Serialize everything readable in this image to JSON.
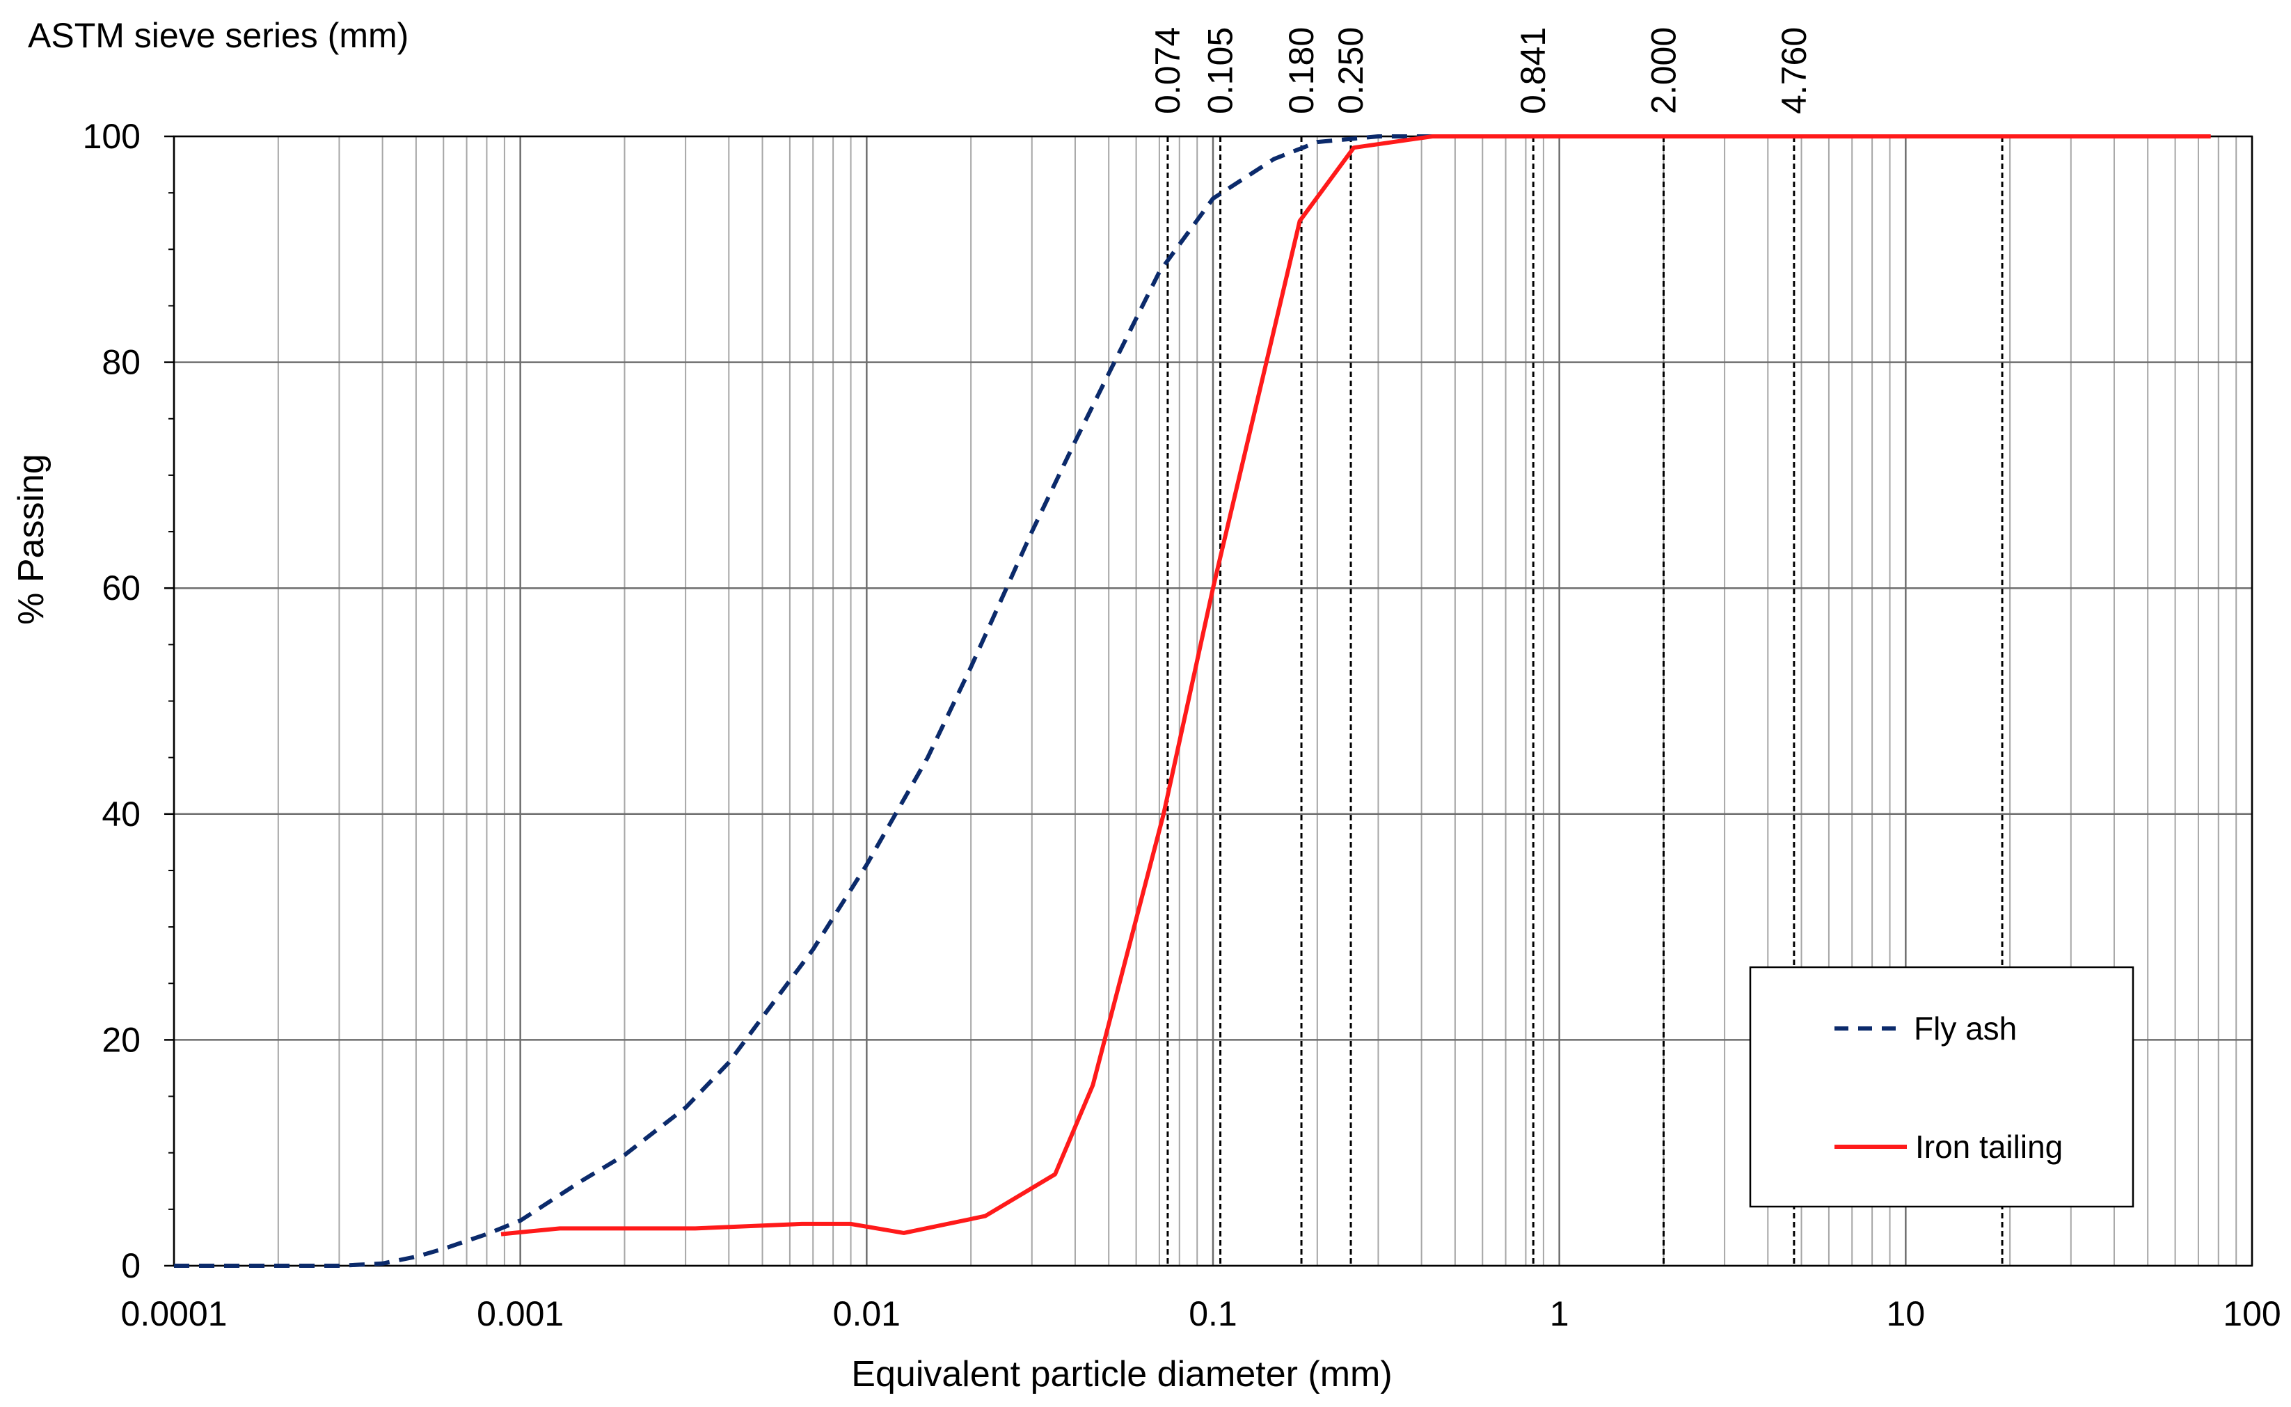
{
  "chart_data": {
    "type": "line",
    "title": "",
    "xlabel": "Equivalent particle diameter (mm)",
    "ylabel": "% Passing",
    "x_scale": "log",
    "xlim": [
      0.0001,
      100
    ],
    "ylim": [
      0,
      100
    ],
    "x_ticks": [
      "0.0001",
      "0.001",
      "0.01",
      "0.1",
      "1",
      "10",
      "100"
    ],
    "y_ticks": [
      "0",
      "20",
      "40",
      "60",
      "80",
      "100"
    ],
    "grid": true,
    "legend_position": "bottom-right",
    "sieve_axis": {
      "label": "ASTM sieve series (mm)",
      "sieves": [
        {
          "label": "0.074",
          "value": 0.074
        },
        {
          "label": "0.105",
          "value": 0.105
        },
        {
          "label": "0.180",
          "value": 0.18
        },
        {
          "label": "0.250",
          "value": 0.25
        },
        {
          "label": "0.841",
          "value": 0.841
        },
        {
          "label": "2.000",
          "value": 2.0
        },
        {
          "label": "4.760",
          "value": 4.76
        },
        {
          "label": "",
          "value": 19.0
        }
      ]
    },
    "series": [
      {
        "name": "Fly ash",
        "color": "#0b2a6b",
        "style": "dashed",
        "points": [
          [
            0.0001,
            0
          ],
          [
            0.0002,
            0
          ],
          [
            0.0003,
            0
          ],
          [
            0.0004,
            0.2
          ],
          [
            0.0005,
            0.8
          ],
          [
            0.0006,
            1.5
          ],
          [
            0.0007,
            2.2
          ],
          [
            0.0008,
            2.8
          ],
          [
            0.001,
            4.0
          ],
          [
            0.0015,
            7.5
          ],
          [
            0.002,
            9.8
          ],
          [
            0.003,
            14.0
          ],
          [
            0.004,
            18.0
          ],
          [
            0.005,
            22.0
          ],
          [
            0.007,
            28.0
          ],
          [
            0.01,
            35.5
          ],
          [
            0.015,
            45.0
          ],
          [
            0.02,
            53.0
          ],
          [
            0.03,
            65.0
          ],
          [
            0.04,
            73.0
          ],
          [
            0.05,
            79.0
          ],
          [
            0.07,
            88.0
          ],
          [
            0.1,
            94.5
          ],
          [
            0.15,
            98.0
          ],
          [
            0.2,
            99.5
          ],
          [
            0.3,
            100
          ],
          [
            1.0,
            100
          ],
          [
            10,
            100
          ],
          [
            75,
            100
          ]
        ]
      },
      {
        "name": "Iron tailing",
        "color": "#ff1a1a",
        "style": "solid",
        "points": [
          [
            0.00088,
            2.8
          ],
          [
            0.0013,
            3.3
          ],
          [
            0.0032,
            3.3
          ],
          [
            0.0065,
            3.7
          ],
          [
            0.009,
            3.7
          ],
          [
            0.0128,
            2.9
          ],
          [
            0.022,
            4.4
          ],
          [
            0.035,
            8.1
          ],
          [
            0.045,
            16.0
          ],
          [
            0.072,
            40.0
          ],
          [
            0.1,
            60.0
          ],
          [
            0.178,
            92.5
          ],
          [
            0.255,
            99.0
          ],
          [
            0.43,
            100
          ],
          [
            1.0,
            100
          ],
          [
            10,
            100
          ],
          [
            76,
            100
          ]
        ]
      }
    ]
  }
}
